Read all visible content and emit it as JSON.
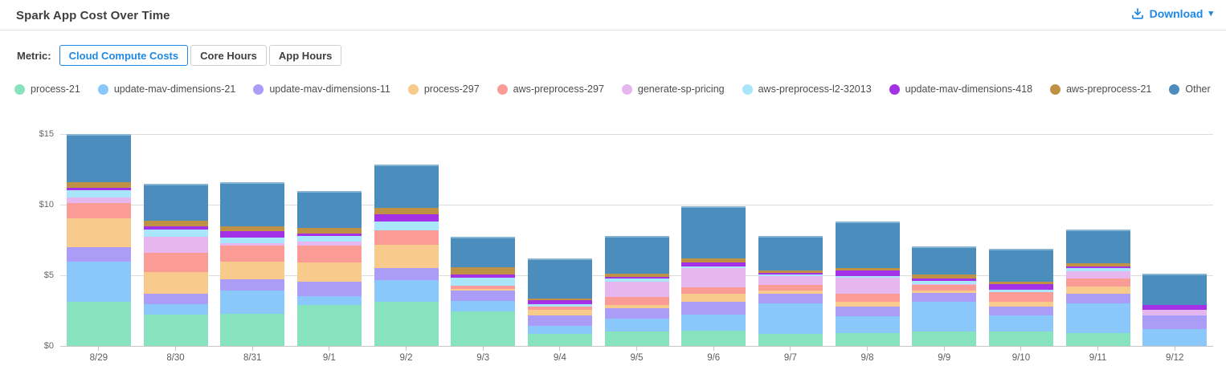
{
  "header": {
    "title": "Spark App Cost Over Time",
    "download_label": "Download"
  },
  "icons": {
    "download": "download-tray-icon",
    "download_caret": "caret-down-icon"
  },
  "metric_toggle": {
    "label": "Metric:",
    "options": [
      {
        "label": "Cloud Compute Costs",
        "selected": true
      },
      {
        "label": "Core Hours",
        "selected": false
      },
      {
        "label": "App Hours",
        "selected": false
      }
    ]
  },
  "colors": {
    "accent_blue": "#1e88e5",
    "grid_line": "#dcdcdc",
    "axis_line": "#c6c6c6",
    "axis_text": "#666666",
    "title_text": "#3f3f3f"
  },
  "chart_data": {
    "type": "bar",
    "stacked": true,
    "title": "Spark App Cost Over Time",
    "xlabel": "",
    "ylabel": "Cloud Compute Costs ($)",
    "ylim": [
      0,
      15
    ],
    "yticks": [
      {
        "label": "$0",
        "value": 0
      },
      {
        "label": "$5",
        "value": 5
      },
      {
        "label": "$10",
        "value": 10
      },
      {
        "label": "$15",
        "value": 15
      }
    ],
    "grid": true,
    "legend_position": "top",
    "categories": [
      "8/29",
      "8/30",
      "8/31",
      "9/1",
      "9/2",
      "9/3",
      "9/4",
      "9/5",
      "9/6",
      "9/7",
      "9/8",
      "9/9",
      "9/10",
      "9/11",
      "9/12"
    ],
    "series": [
      {
        "name": "process-21",
        "color": "#87e3be",
        "values": [
          3.15,
          2.2,
          2.3,
          2.9,
          3.15,
          2.45,
          0.85,
          1.05,
          1.1,
          0.85,
          0.9,
          1.0,
          1.0,
          0.9,
          0.0
        ]
      },
      {
        "name": "update-mav-dimensions-21",
        "color": "#8ac7fa",
        "values": [
          2.8,
          0.75,
          1.6,
          0.65,
          1.5,
          0.75,
          0.55,
          0.9,
          1.1,
          2.15,
          1.2,
          2.1,
          1.15,
          2.1,
          1.2
        ]
      },
      {
        "name": "update-mav-dimensions-11",
        "color": "#ab9cf8",
        "values": [
          1.05,
          0.75,
          0.8,
          1.0,
          0.85,
          0.75,
          0.75,
          0.7,
          0.95,
          0.7,
          0.7,
          0.65,
          0.65,
          0.7,
          0.95
        ]
      },
      {
        "name": "process-297",
        "color": "#f8cb8d",
        "values": [
          2.05,
          1.55,
          1.25,
          1.35,
          1.65,
          0.1,
          0.4,
          0.25,
          0.55,
          0.2,
          0.35,
          0.2,
          0.3,
          0.5,
          0.0
        ]
      },
      {
        "name": "aws-preprocess-297",
        "color": "#fb9b96",
        "values": [
          1.05,
          1.35,
          1.15,
          1.2,
          1.05,
          0.2,
          0.25,
          0.55,
          0.45,
          0.4,
          0.55,
          0.35,
          0.7,
          0.55,
          0.0
        ]
      },
      {
        "name": "generate-sp-pricing",
        "color": "#e6b7ef",
        "values": [
          0.4,
          1.15,
          0.15,
          0.3,
          0.0,
          0.0,
          0.0,
          1.1,
          1.35,
          0.65,
          1.15,
          0.1,
          0.0,
          0.55,
          0.4
        ]
      },
      {
        "name": "aws-preprocess-l2-32013",
        "color": "#a9e6fb",
        "values": [
          0.5,
          0.5,
          0.4,
          0.4,
          0.6,
          0.6,
          0.15,
          0.2,
          0.15,
          0.1,
          0.1,
          0.2,
          0.2,
          0.2,
          0.0
        ]
      },
      {
        "name": "update-mav-dimensions-418",
        "color": "#a531e6",
        "values": [
          0.2,
          0.2,
          0.5,
          0.15,
          0.5,
          0.2,
          0.3,
          0.15,
          0.25,
          0.15,
          0.4,
          0.2,
          0.35,
          0.15,
          0.35
        ]
      },
      {
        "name": "aws-preprocess-21",
        "color": "#be9145",
        "values": [
          0.4,
          0.4,
          0.3,
          0.4,
          0.45,
          0.55,
          0.1,
          0.2,
          0.3,
          0.15,
          0.15,
          0.25,
          0.2,
          0.2,
          0.0
        ]
      },
      {
        "name": "Other",
        "color": "#4b8ebe",
        "values": [
          3.4,
          2.65,
          3.15,
          2.65,
          3.1,
          2.15,
          2.85,
          2.7,
          3.7,
          2.45,
          3.3,
          2.0,
          2.35,
          2.4,
          2.2
        ]
      }
    ]
  }
}
